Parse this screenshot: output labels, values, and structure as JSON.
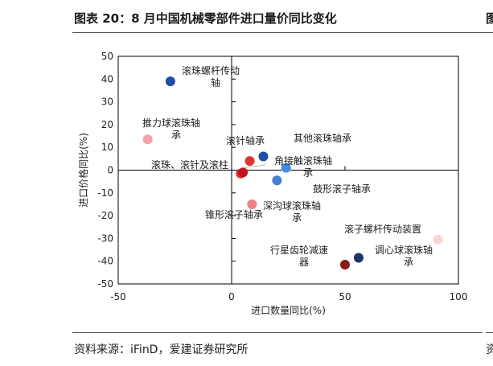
{
  "header": {
    "title": "图表 20：8 月中国机械零部件进口量价同比变化",
    "next_title_fragment": "图"
  },
  "footer": {
    "source": "资料来源：iFinD，爱建证券研究所",
    "next_source_fragment": "资"
  },
  "chart_data": {
    "type": "scatter",
    "xlabel": "进口数量同比(%)",
    "ylabel": "进口价格同比(%)",
    "xlim": [
      -50,
      100
    ],
    "ylim": [
      -50,
      50
    ],
    "xticks": [
      -50,
      0,
      50,
      100
    ],
    "yticks": [
      50,
      40,
      30,
      20,
      10,
      0,
      -10,
      -20,
      -30,
      -40,
      -50
    ],
    "grid": false,
    "points": [
      {
        "label": "滚珠螺杆传动轴",
        "x": -27,
        "y": 39,
        "color": "#1f4ea3"
      },
      {
        "label": "推力球滚珠轴承",
        "x": -37,
        "y": 13.5,
        "color": "#f4a3a8"
      },
      {
        "label": "滚针轴承",
        "x": 8,
        "y": 4,
        "color": "#e03131"
      },
      {
        "label": "其他滚珠轴承",
        "x": 14,
        "y": 6,
        "color": "#1f4ea3"
      },
      {
        "label": "角接触滚珠轴承",
        "x": 24,
        "y": 1,
        "color": "#3d8ee8"
      },
      {
        "label": "滚珠、滚针及滚柱",
        "x": 4,
        "y": -1.5,
        "color": "#e03131"
      },
      {
        "label": "鼓形滚子轴承",
        "x": 20,
        "y": -4.5,
        "color": "#4a7fd1"
      },
      {
        "label": "深沟球滚珠轴承",
        "x": 9,
        "y": -15,
        "color": "#f08080"
      },
      {
        "label": "锥形滚子轴承",
        "x": 5,
        "y": -1,
        "color": "#c2121f"
      },
      {
        "label": "滚子螺杆传动装置",
        "x": 91,
        "y": -30.5,
        "color": "#fbd5d5"
      },
      {
        "label": "调心球滚珠轴承",
        "x": 56,
        "y": -38.5,
        "color": "#1a3567"
      },
      {
        "label": "行星齿轮减速器",
        "x": 50,
        "y": -41.5,
        "color": "#8b1a1a"
      }
    ]
  }
}
